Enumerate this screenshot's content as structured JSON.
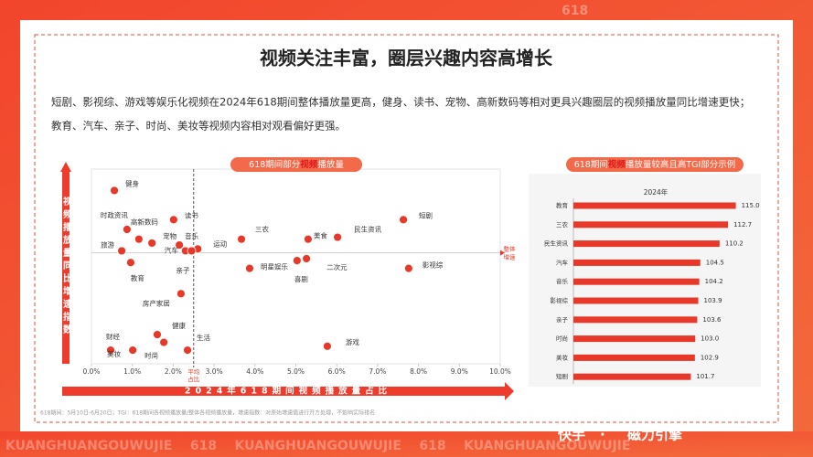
{
  "header": {
    "title": "视频关注丰富，圈层兴趣内容高增长",
    "watermark_top": "618"
  },
  "paragraph": [
    "短剧、影视综、游戏等娱乐化视频在2024年618期间整体播放量更高，健身、读书、宠物、高新数码等相对更具兴趣圈层的视频播放量同比增速更快；",
    "教育、汽车、亲子、时尚、美妆等视频内容相对观看偏好更强。"
  ],
  "footnote": "618期间：5月10日-6月20日；TGI：618期间各视频播放量/整体各视频播放量，增速指数：对原始增速值进行开方处理，不影响实际排名",
  "footer": {
    "watermark": "KUANGHUANGOUWUJIE    618    KUANGHUANGOUWUJIE    618    KUANGHUANGOUWUJIE",
    "brand": [
      "快手",
      "·",
      "磁力引擎"
    ]
  },
  "chart_data": [
    {
      "type": "scatter",
      "title_parts": [
        "618期间部分",
        "视频",
        "播放量"
      ],
      "x_label": "2024年618期间视频播放量占比",
      "y_label": "视频播放量同比增速指数",
      "point_labels": [
        "健身",
        "时政资讯",
        "高新数码",
        "读书",
        "宠物",
        "音乐",
        "旅游",
        "汽车",
        "运动",
        "亲子",
        "教育",
        "房产家居",
        "健康",
        "财经",
        "美妆",
        "时尚",
        "生活",
        "三农",
        "明星娱乐",
        "美食",
        "二次元",
        "喜剧",
        "民生资讯",
        "短剧",
        "影视综",
        "游戏"
      ],
      "x": [
        0.56,
        0.87,
        1.16,
        2.01,
        1.48,
        2.15,
        0.74,
        2.3,
        2.6,
        2.45,
        0.96,
        2.19,
        1.61,
        0.47,
        1.01,
        1.77,
        2.35,
        3.67,
        3.87,
        5.3,
        5.26,
        5.03,
        6.02,
        7.63,
        7.76,
        5.77
      ],
      "values": [
        89,
        69,
        64,
        74,
        62,
        61,
        58,
        58,
        59,
        58,
        52,
        36,
        15,
        7,
        7,
        11,
        7,
        64,
        49,
        64,
        54,
        53,
        65,
        74,
        49,
        9
      ],
      "color": "#e8382a",
      "xlim": [
        0,
        10
      ],
      "ylim": [
        0,
        100
      ],
      "xticks": [
        {
          "value": 0,
          "label": "0.0%"
        },
        {
          "value": 1,
          "label": "1.0%"
        },
        {
          "value": 2,
          "label": "2.0%"
        },
        {
          "value": 3,
          "label": "3.0%"
        },
        {
          "value": 4,
          "label": "4.0%"
        },
        {
          "value": 5,
          "label": "5.0%"
        },
        {
          "value": 6,
          "label": "6.0%"
        },
        {
          "value": 7,
          "label": "7.0%"
        },
        {
          "value": 8,
          "label": "8.0%"
        },
        {
          "value": 9,
          "label": "9.0%"
        },
        {
          "value": 10,
          "label": "10.0%"
        }
      ],
      "hline": {
        "value": 57,
        "label": [
          "整体",
          "增速"
        ]
      },
      "vline": {
        "value": 2.5,
        "label": [
          "平均",
          "占比"
        ]
      }
    },
    {
      "type": "hbar",
      "title_parts": [
        "618期间",
        "视频",
        "播放量较高且高TGI部分示例"
      ],
      "subtitle": "2024年",
      "categories": [
        "教育",
        "三农",
        "民生资讯",
        "汽车",
        "音乐",
        "影视综",
        "亲子",
        "时尚",
        "美妆",
        "短剧"
      ],
      "values": [
        115,
        112.7,
        110.2,
        104.5,
        104.2,
        103.9,
        103.6,
        103,
        102.9,
        101.7
      ],
      "value_labels": [
        "115.0",
        "112.7",
        "110.2",
        "104.5",
        "104.2",
        "103.9",
        "103.6",
        "103.0",
        "102.9",
        "101.7"
      ],
      "color": "#e8382a",
      "xlim": [
        67,
        117
      ]
    }
  ]
}
